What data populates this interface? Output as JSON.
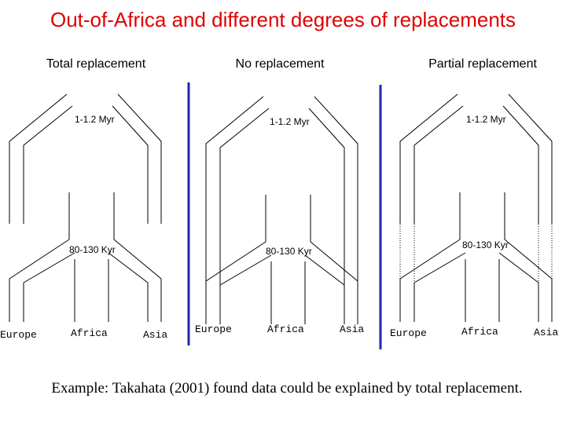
{
  "title": "Out-of-Africa and different degrees of replacements",
  "panels": [
    {
      "heading": "Total replacement",
      "labels": {
        "top": "1-1.2 Myr",
        "middle": "80-130 Kyr"
      },
      "regions": [
        "Europe",
        "Africa",
        "Asia"
      ]
    },
    {
      "heading": "No replacement",
      "labels": {
        "top": "1-1.2 Myr",
        "middle": "80-130 Kyr"
      },
      "regions": [
        "Europe",
        "Africa",
        "Asia"
      ]
    },
    {
      "heading": "Partial replacement",
      "labels": {
        "top": "1-1.2 Myr",
        "middle": "80-130 Kyr"
      },
      "regions": [
        "Europe",
        "Africa",
        "Asia"
      ]
    }
  ],
  "caption": "Example: Takahata (2001) found data could be explained by total replacement."
}
